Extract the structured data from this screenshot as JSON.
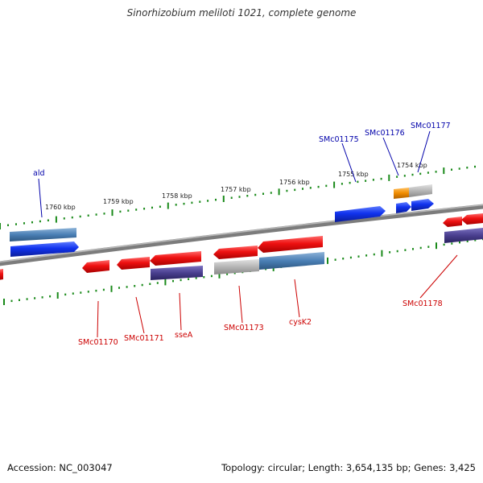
{
  "title": "Sinorhizobium meliloti 1021, complete genome",
  "footer": {
    "accession": "Accession: NC_003047",
    "stats": "Topology: circular; Length: 3,654,135 bp; Genes: 3,425"
  },
  "colors": {
    "background": "#ffffff",
    "backbone": "#808080",
    "scale_ticks": "#1a8a1a",
    "forward_label": "#0000aa",
    "reverse_label": "#cc0000",
    "gene_red": "#ee1111",
    "gene_blue": "#1133ee",
    "gene_steelblue": "#4a7fb5",
    "gene_darkpurple": "#4a3f8f",
    "gene_grey": "#b5b5b5",
    "gene_orange": "#f08c00"
  },
  "scale_labels": [
    "1760 kbp",
    "1759 kbp",
    "1758 kbp",
    "1757 kbp",
    "1756 kbp",
    "1755 kbp",
    "1754 kbp"
  ],
  "forward_gene_labels": [
    "ald",
    "SMc01175",
    "SMc01176",
    "SMc01177"
  ],
  "reverse_gene_labels": [
    "SMc01170",
    "SMc01171",
    "sseA",
    "SMc01173",
    "cysK2",
    "SMc01178"
  ]
}
